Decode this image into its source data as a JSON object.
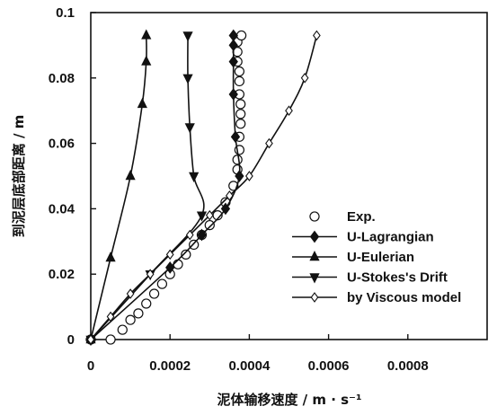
{
  "chart_data": {
    "type": "line",
    "xlabel": "泥体输移速度 / m · s⁻¹",
    "ylabel": "到泥层底部距离 / m",
    "xlim": [
      0,
      0.001
    ],
    "ylim": [
      0,
      0.1
    ],
    "x_ticks": [
      "0",
      "0.0002",
      "0.0004",
      "0.0006",
      "0.0008"
    ],
    "y_ticks": [
      "0",
      "0.02",
      "0.04",
      "0.06",
      "0.08",
      "0.1"
    ],
    "grid": false,
    "legend_position": "bottom-right",
    "series": [
      {
        "name": "Exp.",
        "marker": "open-circle",
        "line": false,
        "points": [
          [
            0.0,
            0.0
          ],
          [
            5e-05,
            0.0
          ],
          [
            8e-05,
            0.003
          ],
          [
            0.0001,
            0.006
          ],
          [
            0.00012,
            0.008
          ],
          [
            0.00014,
            0.011
          ],
          [
            0.00016,
            0.014
          ],
          [
            0.00018,
            0.017
          ],
          [
            0.0002,
            0.02
          ],
          [
            0.00022,
            0.023
          ],
          [
            0.00024,
            0.026
          ],
          [
            0.00026,
            0.029
          ],
          [
            0.00028,
            0.032
          ],
          [
            0.0003,
            0.035
          ],
          [
            0.00032,
            0.038
          ],
          [
            0.00034,
            0.042
          ],
          [
            0.00036,
            0.047
          ],
          [
            0.00037,
            0.052
          ],
          [
            0.00037,
            0.055
          ],
          [
            0.000375,
            0.058
          ],
          [
            0.000375,
            0.062
          ],
          [
            0.000378,
            0.066
          ],
          [
            0.000378,
            0.069
          ],
          [
            0.000378,
            0.072
          ],
          [
            0.000375,
            0.075
          ],
          [
            0.000375,
            0.079
          ],
          [
            0.000375,
            0.082
          ],
          [
            0.00037,
            0.085
          ],
          [
            0.00037,
            0.088
          ],
          [
            0.00037,
            0.091
          ],
          [
            0.00038,
            0.093
          ]
        ]
      },
      {
        "name": "U-Lagrangian",
        "marker": "filled-diamond",
        "line": true,
        "points": [
          [
            0.0,
            0.0
          ],
          [
            0.0002,
            0.022
          ],
          [
            0.00028,
            0.032
          ],
          [
            0.00034,
            0.04
          ],
          [
            0.000375,
            0.05
          ],
          [
            0.000365,
            0.062
          ],
          [
            0.00036,
            0.075
          ],
          [
            0.00036,
            0.085
          ],
          [
            0.00036,
            0.09
          ],
          [
            0.00036,
            0.093
          ]
        ]
      },
      {
        "name": "U-Eulerian",
        "marker": "filled-triangle-up",
        "line": true,
        "points": [
          [
            0.0,
            0.0
          ],
          [
            5e-05,
            0.025
          ],
          [
            0.0001,
            0.05
          ],
          [
            0.00013,
            0.072
          ],
          [
            0.00014,
            0.085
          ],
          [
            0.00014,
            0.093
          ]
        ]
      },
      {
        "name": "U-Stokes's Drift",
        "marker": "filled-triangle-down",
        "line": true,
        "points": [
          [
            0.0,
            0.0
          ],
          [
            0.00015,
            0.02
          ],
          [
            0.00028,
            0.038
          ],
          [
            0.00026,
            0.05
          ],
          [
            0.00025,
            0.065
          ],
          [
            0.000245,
            0.08
          ],
          [
            0.000245,
            0.093
          ]
        ]
      },
      {
        "name": "by Viscous model",
        "marker": "open-diamond",
        "line": true,
        "points": [
          [
            0.0,
            0.0
          ],
          [
            5e-05,
            0.007
          ],
          [
            0.0001,
            0.014
          ],
          [
            0.00015,
            0.02
          ],
          [
            0.0002,
            0.026
          ],
          [
            0.00025,
            0.032
          ],
          [
            0.0003,
            0.038
          ],
          [
            0.00035,
            0.044
          ],
          [
            0.0004,
            0.05
          ],
          [
            0.00045,
            0.06
          ],
          [
            0.0005,
            0.07
          ],
          [
            0.00054,
            0.08
          ],
          [
            0.00057,
            0.093
          ]
        ]
      }
    ]
  }
}
